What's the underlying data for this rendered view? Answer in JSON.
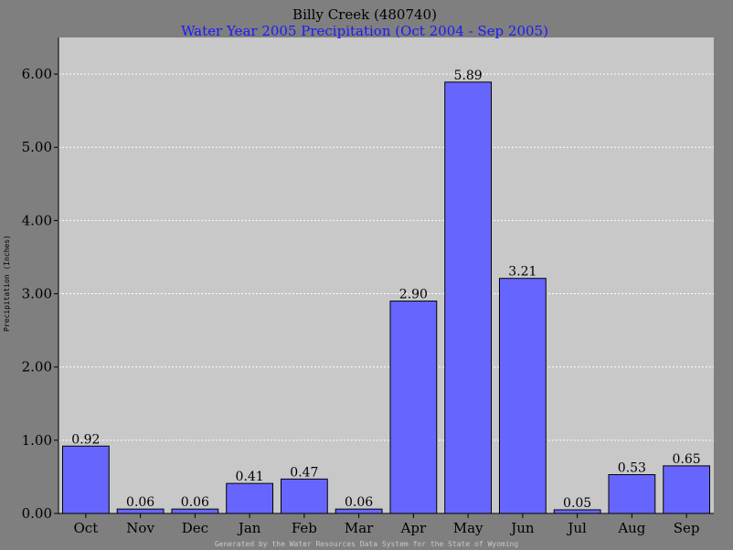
{
  "chart_data": {
    "type": "bar",
    "title": "Billy Creek (480740)",
    "subtitle": "Water Year 2005 Precipitation (Oct 2004 - Sep 2005)",
    "ylabel": "Precipitation (Inches)",
    "xlabel": "",
    "categories": [
      "Oct",
      "Nov",
      "Dec",
      "Jan",
      "Feb",
      "Mar",
      "Apr",
      "May",
      "Jun",
      "Jul",
      "Aug",
      "Sep"
    ],
    "values": [
      0.92,
      0.06,
      0.06,
      0.41,
      0.47,
      0.06,
      2.9,
      5.89,
      3.21,
      0.05,
      0.53,
      0.65
    ],
    "value_labels": [
      "0.92",
      "0.06",
      "0.06",
      "0.41",
      "0.47",
      "0.06",
      "2.90",
      "5.89",
      "3.21",
      "0.05",
      "0.53",
      "0.65"
    ],
    "yticks": [
      "0.00",
      "1.00",
      "2.00",
      "3.00",
      "4.00",
      "5.00",
      "6.00"
    ],
    "ylim": [
      0,
      6.5
    ],
    "grid": true,
    "colors": {
      "bar": "#6666ff",
      "plot_bg": "#c8c8c8",
      "page_bg": "#7f7f7f",
      "grid": "#ffffff",
      "subtitle": "#1a1aff"
    }
  },
  "footer": "Generated by the Water Resources Data System for the State of Wyoming"
}
